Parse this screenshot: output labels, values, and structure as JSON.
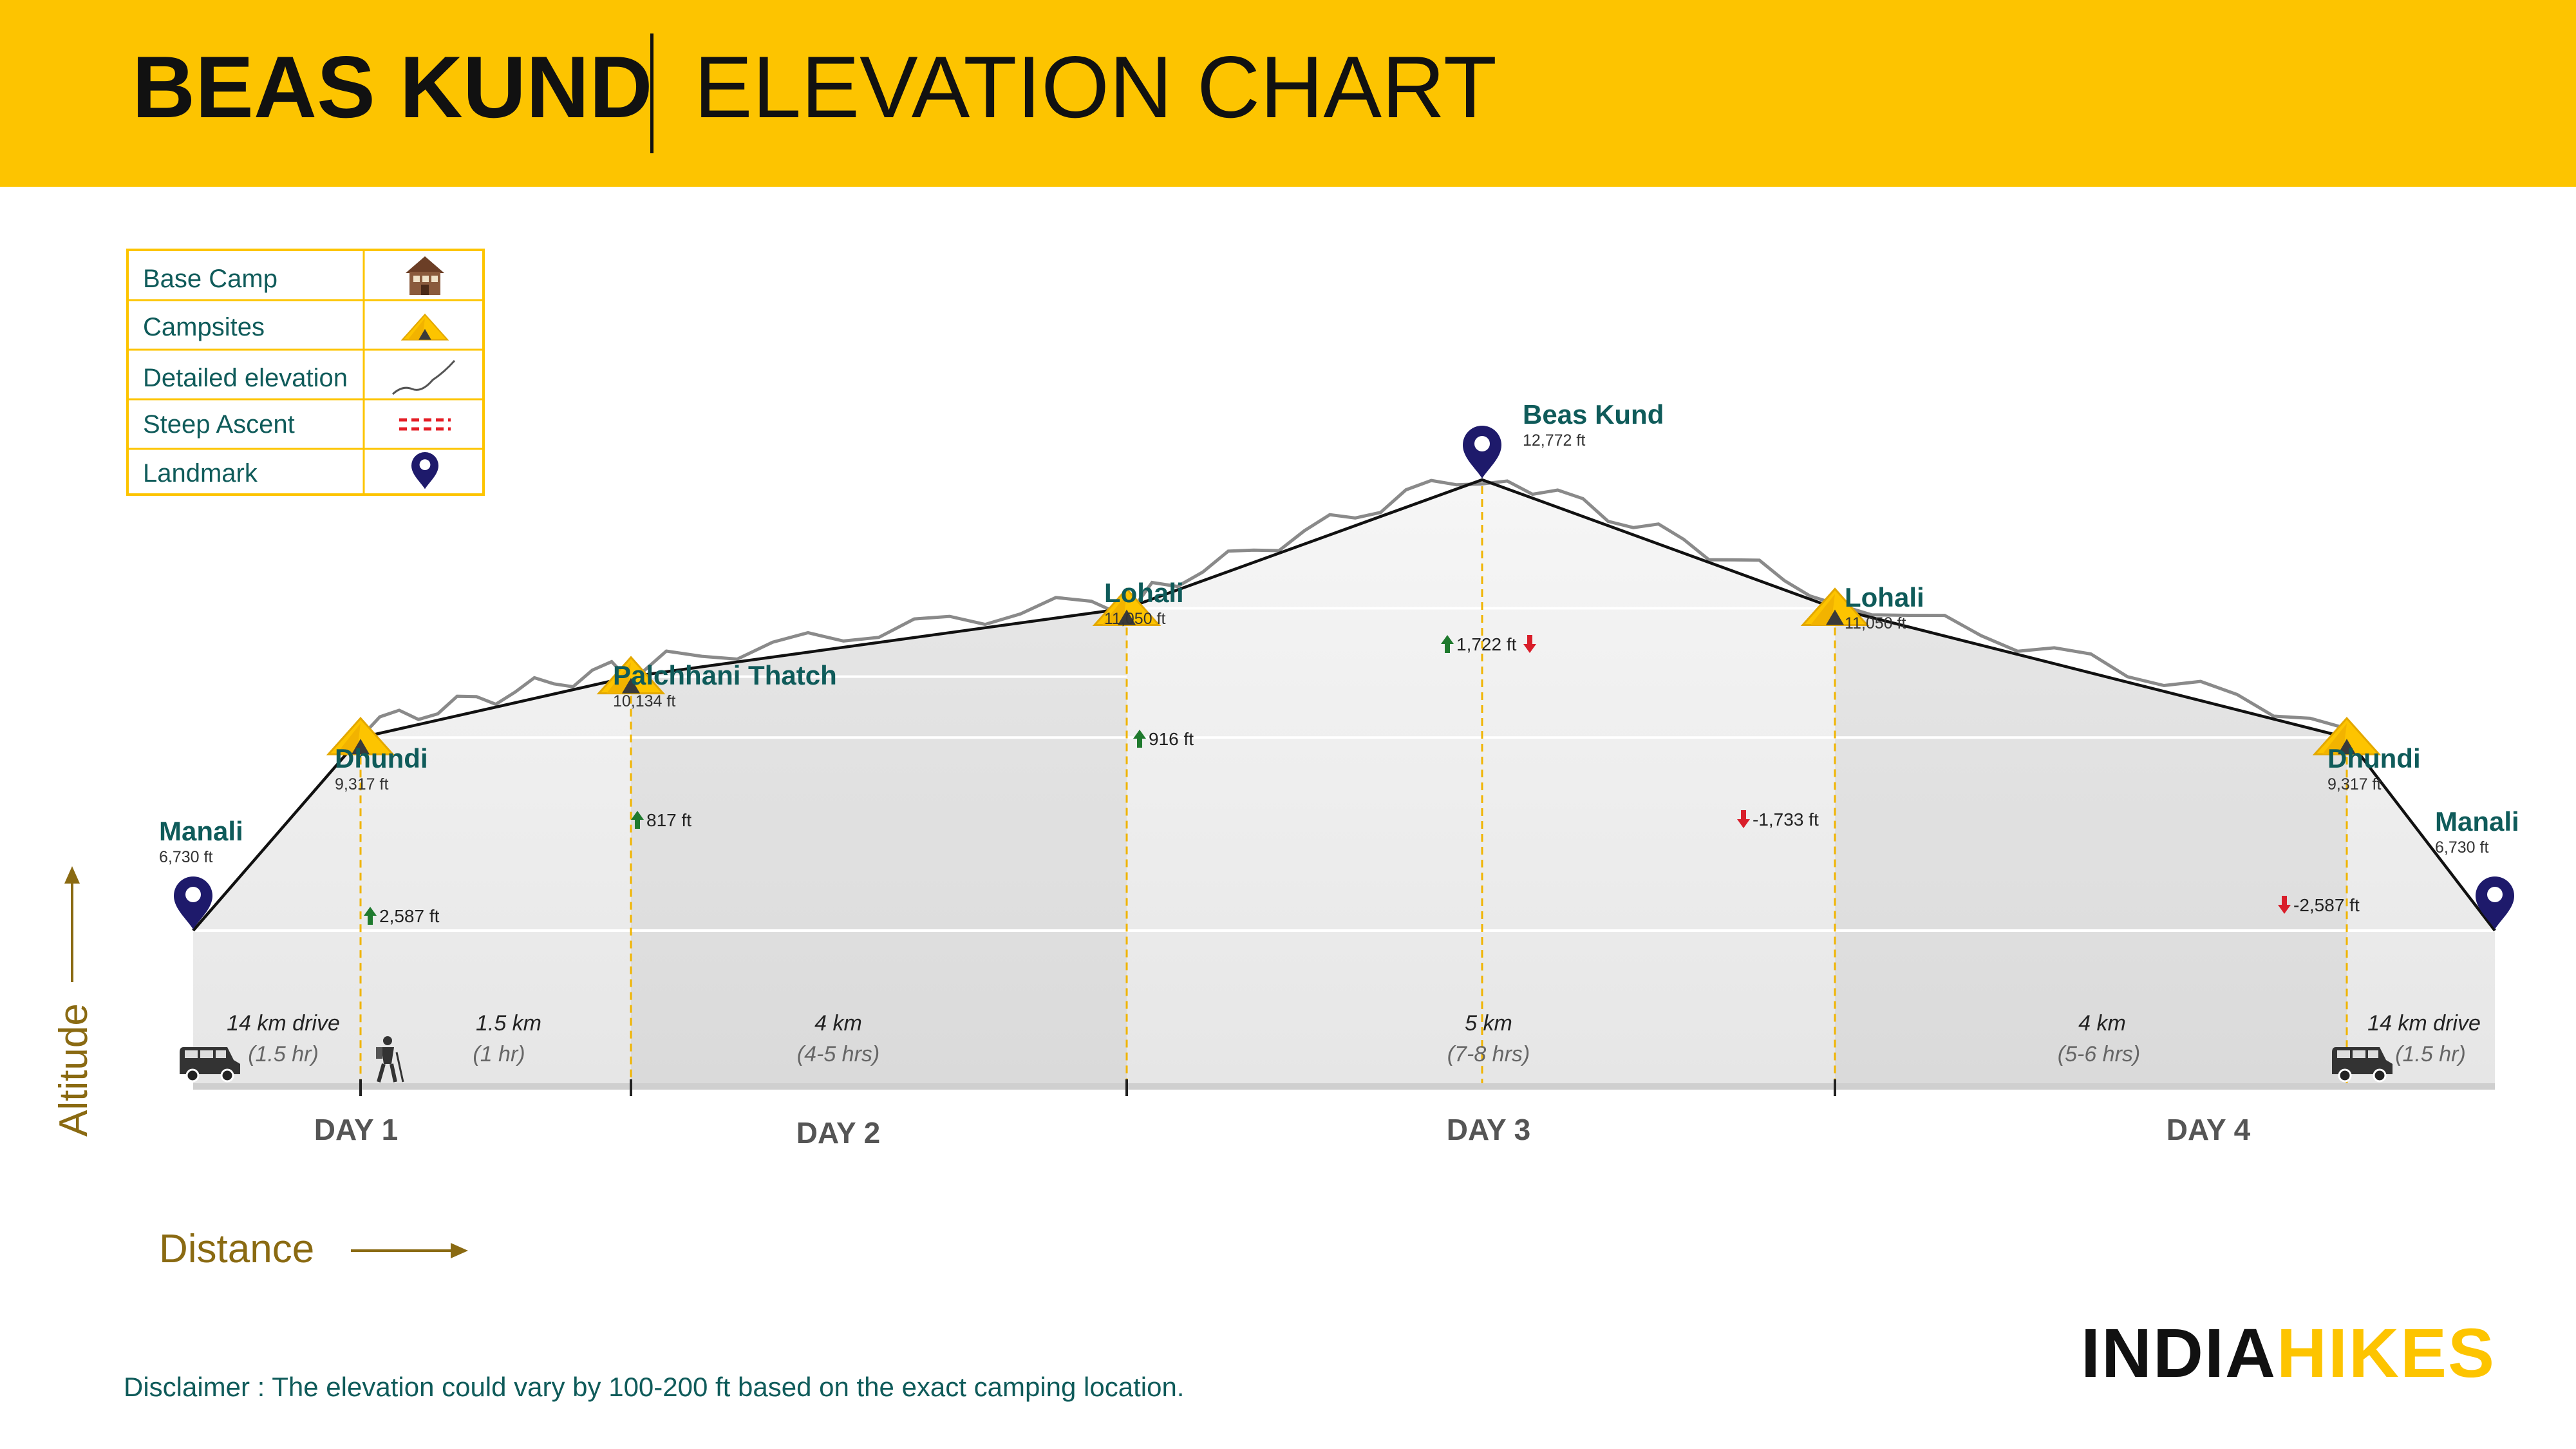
{
  "header": {
    "title_bold": "BEAS KUND",
    "title_light": "ELEVATION CHART",
    "bg_color": "#FDC400"
  },
  "legend": {
    "items": [
      {
        "label": "Base Camp",
        "icon": "house-icon"
      },
      {
        "label": "Campsites",
        "icon": "tent-icon"
      },
      {
        "label": "Detailed elevation",
        "icon": "elevation-line-icon"
      },
      {
        "label": "Steep Ascent",
        "icon": "red-dashed-line-icon"
      },
      {
        "label": "Landmark",
        "icon": "map-pin-icon"
      }
    ]
  },
  "colors": {
    "accent": "#FDC400",
    "teal": "#0F5B5A",
    "dark_pin": "#1E1A6B",
    "green_arrow": "#1F7A2E",
    "red_arrow": "#D91E2A",
    "axis_gold": "#8A6A12",
    "area_light": "#F2F2F2",
    "area_dark": "#E4E4E4"
  },
  "chart_data": {
    "type": "area",
    "points": [
      {
        "name": "Manali",
        "elev_label": "6,730 ft",
        "elevation": 6730,
        "marker": "landmark"
      },
      {
        "name": "Dhundi",
        "elev_label": "9,317 ft",
        "elevation": 9317,
        "marker": "campsite"
      },
      {
        "name": "Palchhani Thatch",
        "elev_label": "10,134 ft",
        "elevation": 10134,
        "marker": "campsite"
      },
      {
        "name": "Lohali",
        "elev_label": "11,050 ft",
        "elevation": 11050,
        "marker": "campsite"
      },
      {
        "name": "Beas Kund",
        "elev_label": "12,772  ft",
        "elevation": 12772,
        "marker": "landmark"
      },
      {
        "name": "Lohali",
        "elev_label": "11,050 ft",
        "elevation": 11050,
        "marker": "campsite"
      },
      {
        "name": "Dhundi",
        "elev_label": "9,317 ft",
        "elevation": 9317,
        "marker": "campsite"
      },
      {
        "name": "Manali",
        "elev_label": "6,730 ft",
        "elevation": 6730,
        "marker": "landmark"
      }
    ],
    "elevation_changes": [
      {
        "label": "2,587 ft",
        "direction": "up"
      },
      {
        "label": "817 ft",
        "direction": "up"
      },
      {
        "label": "916 ft",
        "direction": "up"
      },
      {
        "label": "1,722 ft",
        "direction": "both"
      },
      {
        "label": "-1,733 ft",
        "direction": "down"
      },
      {
        "label": "-2,587 ft",
        "direction": "down"
      }
    ],
    "segments": [
      {
        "distance": "14 km drive",
        "duration": "(1.5 hr)",
        "mode": "van"
      },
      {
        "distance": "1.5 km",
        "duration": "(1 hr)",
        "mode": "trek"
      },
      {
        "distance": "4 km",
        "duration": "(4-5 hrs)",
        "mode": "trek"
      },
      {
        "distance": "5 km",
        "duration": "(7-8 hrs)",
        "mode": "trek"
      },
      {
        "distance": "4 km",
        "duration": "(5-6 hrs)",
        "mode": "trek"
      },
      {
        "distance": "14 km drive",
        "duration": "(1.5 hr)",
        "mode": "van"
      }
    ],
    "days": [
      "DAY 1",
      "DAY 2",
      "DAY 3",
      "DAY 4"
    ],
    "xlabel": "Distance",
    "ylabel": "Altitude"
  },
  "disclaimer": "Disclaimer : The elevation could vary by 100-200 ft based on the exact camping location.",
  "brand": {
    "part1": "INDIA",
    "part2": "HIKES"
  }
}
